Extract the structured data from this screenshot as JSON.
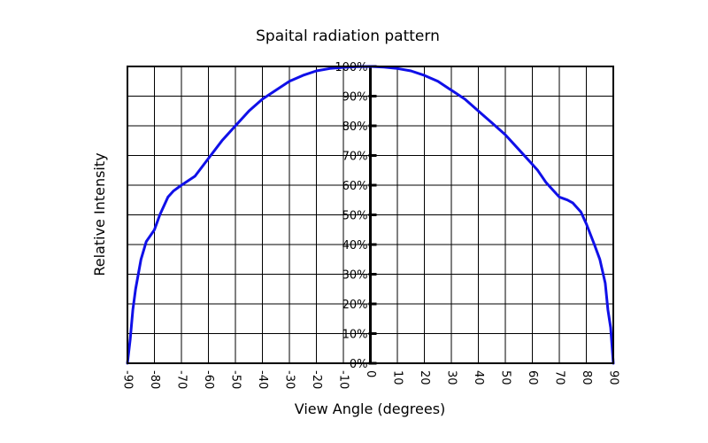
{
  "chart_data": {
    "type": "line",
    "title": "Spaital radiation pattern",
    "xlabel": "View Angle (degrees)",
    "ylabel": "Relative Intensity",
    "xlim": [
      -90,
      90
    ],
    "ylim": [
      0,
      100
    ],
    "x_ticks": [
      -90,
      -80,
      -70,
      -60,
      -50,
      -40,
      -30,
      -20,
      -10,
      0,
      10,
      20,
      30,
      40,
      50,
      60,
      70,
      80,
      90
    ],
    "x_tick_labels": [
      "-90",
      "-80",
      "-70",
      "-60",
      "-50",
      "-40",
      "-30",
      "-20",
      "-10",
      "0",
      "10",
      "20",
      "30",
      "40",
      "50",
      "60",
      "70",
      "80",
      "90"
    ],
    "y_ticks": [
      0,
      10,
      20,
      30,
      40,
      50,
      60,
      70,
      80,
      90,
      100
    ],
    "y_tick_labels": [
      "0%",
      "10%",
      "20%",
      "30%",
      "40%",
      "50%",
      "60%",
      "70%",
      "80%",
      "90%",
      "100%"
    ],
    "grid": true,
    "series": [
      {
        "color": "#1010e8",
        "x": [
          -90,
          -89,
          -88,
          -87,
          -85,
          -83,
          -80,
          -78,
          -75,
          -73,
          -70,
          -65,
          -60,
          -55,
          -50,
          -45,
          -40,
          -35,
          -30,
          -25,
          -20,
          -15,
          -10,
          -5,
          0,
          5,
          10,
          15,
          20,
          25,
          30,
          35,
          40,
          45,
          50,
          55,
          60,
          62,
          65,
          68,
          70,
          73,
          75,
          78,
          80,
          83,
          85,
          87,
          88,
          89,
          90
        ],
        "y": [
          0,
          8,
          18,
          25,
          35,
          41,
          45,
          50,
          56,
          58,
          60,
          63,
          69,
          75,
          80,
          85,
          89,
          92,
          95,
          97,
          98.5,
          99.3,
          99.7,
          99.9,
          100,
          99.8,
          99.3,
          98.5,
          97,
          95,
          92,
          89,
          85,
          81,
          77,
          72,
          67,
          65,
          61,
          58,
          56,
          55,
          54,
          51,
          47,
          40,
          35,
          27,
          18,
          12,
          0
        ]
      }
    ]
  }
}
